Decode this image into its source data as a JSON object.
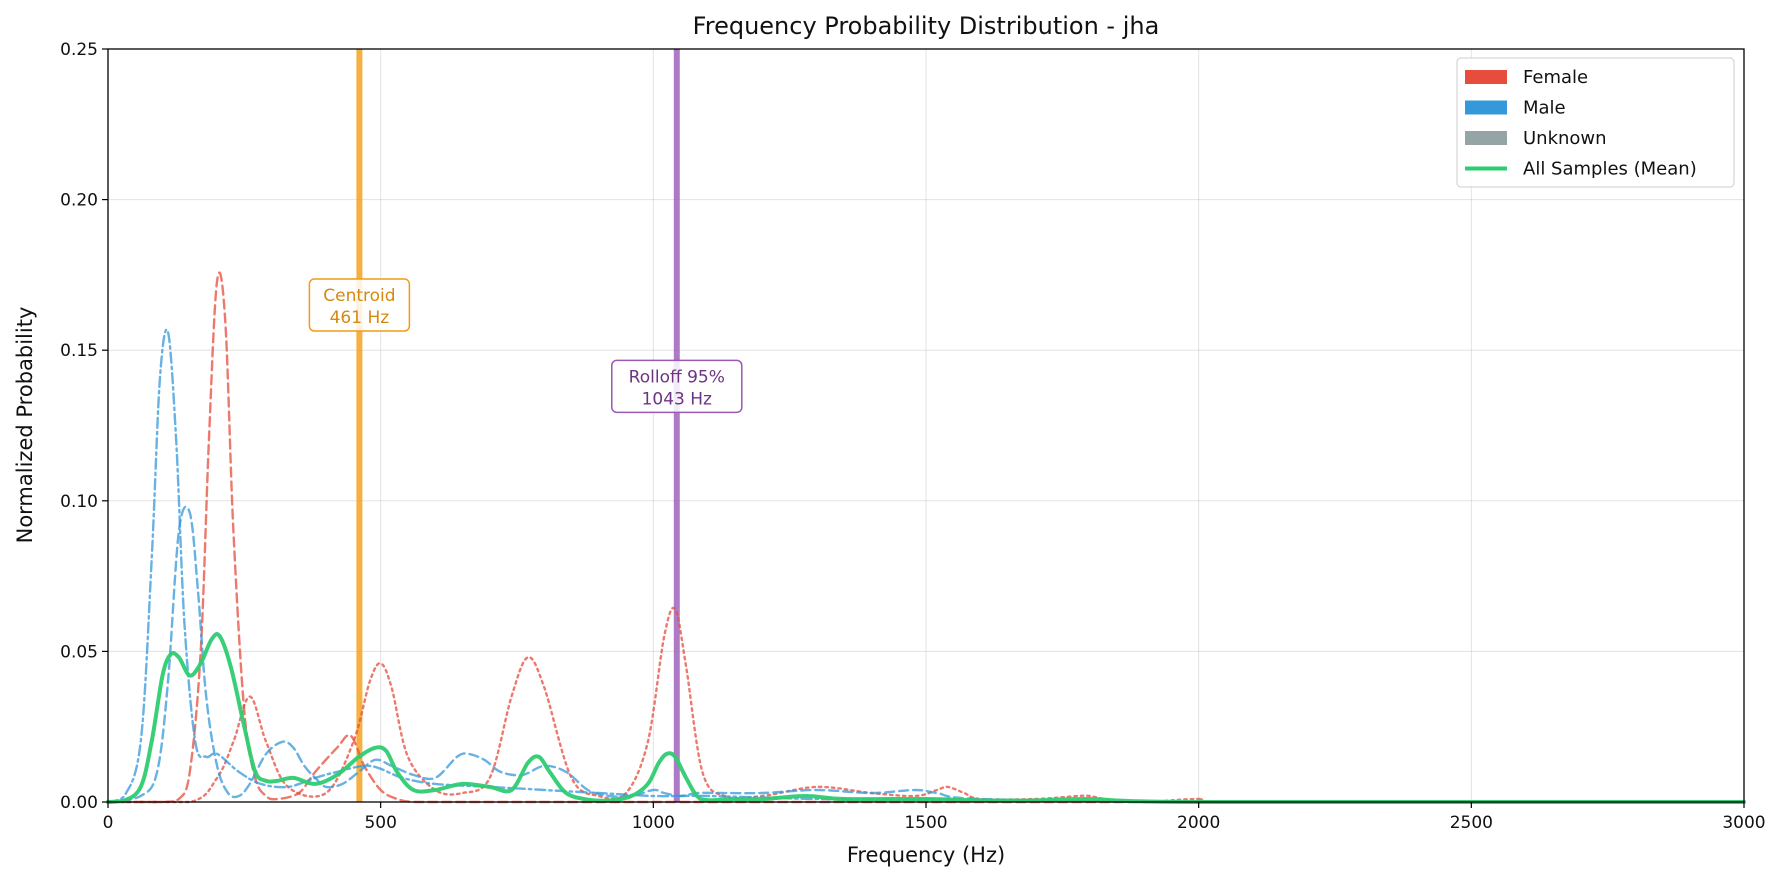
{
  "chart_data": {
    "type": "line",
    "title": "Frequency Probability Distribution - jha",
    "xlabel": "Frequency (Hz)",
    "ylabel": "Normalized Probability",
    "xlim": [
      0,
      3000
    ],
    "ylim": [
      0,
      0.25
    ],
    "xticks": [
      0,
      500,
      1000,
      1500,
      2000,
      2500,
      3000
    ],
    "yticks": [
      0.0,
      0.05,
      0.1,
      0.15,
      0.2,
      0.25
    ],
    "xtick_labels": [
      "0",
      "500",
      "1000",
      "1500",
      "2000",
      "2500",
      "3000"
    ],
    "ytick_labels": [
      "0.00",
      "0.05",
      "0.10",
      "0.15",
      "0.20",
      "0.25"
    ],
    "grid": true,
    "legend_position": "top-right",
    "legend": [
      {
        "label": "Female",
        "kind": "patch",
        "color": "#e74c3c"
      },
      {
        "label": "Male",
        "kind": "patch",
        "color": "#3498db"
      },
      {
        "label": "Unknown",
        "kind": "patch",
        "color": "#95a5a6"
      },
      {
        "label": "All Samples (Mean)",
        "kind": "line",
        "color": "#2ecc71"
      }
    ],
    "vlines": [
      {
        "label": "Centroid",
        "value_label": "461 Hz",
        "x": 461,
        "color": "#f39c12",
        "text_color": "#d68910",
        "label_y": 0.165
      },
      {
        "label": "Rolloff 95%",
        "value_label": "1043 Hz",
        "x": 1043,
        "color": "#9b59b6",
        "text_color": "#6c3483",
        "label_y": 0.138
      }
    ],
    "series": [
      {
        "group": "Female",
        "dash": "dashed",
        "color": "#e74c3c",
        "x": [
          0,
          100,
          130,
          150,
          170,
          185,
          200,
          215,
          230,
          250,
          270,
          290,
          310,
          350,
          380,
          420,
          445,
          470,
          500,
          530,
          560,
          600,
          700,
          800,
          900,
          1000,
          1500,
          2000,
          3000
        ],
        "y": [
          0,
          0,
          0.001,
          0.01,
          0.05,
          0.12,
          0.173,
          0.16,
          0.09,
          0.03,
          0.008,
          0.002,
          0.001,
          0.003,
          0.01,
          0.018,
          0.022,
          0.012,
          0.004,
          0.001,
          0,
          0,
          0,
          0,
          0,
          0,
          0,
          0,
          0
        ]
      },
      {
        "group": "Female",
        "dash": "dotted",
        "color": "#e74c3c",
        "x": [
          0,
          150,
          200,
          230,
          260,
          290,
          330,
          400,
          450,
          480,
          500,
          520,
          550,
          600,
          650,
          700,
          740,
          770,
          800,
          850,
          900,
          950,
          990,
          1020,
          1040,
          1060,
          1090,
          1130,
          1200,
          1300,
          1400,
          1480,
          1520,
          1540,
          1570,
          1600,
          1700,
          1780,
          1800,
          1830,
          1900,
          2000,
          2100,
          3000
        ],
        "y": [
          0,
          0,
          0.008,
          0.02,
          0.035,
          0.02,
          0.005,
          0.003,
          0.02,
          0.04,
          0.046,
          0.038,
          0.015,
          0.004,
          0.003,
          0.008,
          0.035,
          0.048,
          0.038,
          0.008,
          0.002,
          0.003,
          0.02,
          0.055,
          0.064,
          0.045,
          0.01,
          0.002,
          0.002,
          0.005,
          0.003,
          0.002,
          0.004,
          0.005,
          0.003,
          0.001,
          0.001,
          0.002,
          0.002,
          0.001,
          0,
          0.001,
          0,
          0
        ]
      },
      {
        "group": "Male",
        "dash": "dashdot",
        "color": "#3498db",
        "x": [
          0,
          30,
          60,
          80,
          95,
          110,
          125,
          140,
          160,
          180,
          200,
          240,
          280,
          330,
          380,
          420,
          480,
          540,
          600,
          700,
          800,
          900,
          1000,
          1100,
          1300,
          1500,
          2000,
          3000
        ],
        "y": [
          0,
          0.002,
          0.02,
          0.08,
          0.14,
          0.156,
          0.12,
          0.06,
          0.02,
          0.015,
          0.016,
          0.01,
          0.006,
          0.005,
          0.008,
          0.01,
          0.012,
          0.008,
          0.006,
          0.005,
          0.004,
          0.003,
          0.002,
          0.002,
          0.001,
          0.001,
          0,
          0
        ]
      },
      {
        "group": "Male",
        "dash": "dashed",
        "color": "#3498db",
        "x": [
          0,
          60,
          90,
          110,
          130,
          150,
          165,
          180,
          200,
          220,
          240,
          260,
          290,
          320,
          340,
          360,
          380,
          400,
          430,
          460,
          490,
          520,
          560,
          600,
          640,
          660,
          690,
          720,
          760,
          800,
          840,
          880,
          920,
          960,
          1000,
          1020,
          1050,
          1080,
          1120,
          1200,
          1300,
          1400,
          1480,
          1520,
          1600,
          2000,
          3000
        ],
        "y": [
          0,
          0.002,
          0.01,
          0.04,
          0.09,
          0.096,
          0.07,
          0.035,
          0.012,
          0.003,
          0.002,
          0.006,
          0.016,
          0.02,
          0.018,
          0.012,
          0.008,
          0.005,
          0.006,
          0.01,
          0.014,
          0.012,
          0.009,
          0.008,
          0.015,
          0.016,
          0.014,
          0.01,
          0.009,
          0.012,
          0.01,
          0.004,
          0.002,
          0.002,
          0.004,
          0.003,
          0.002,
          0.003,
          0.003,
          0.003,
          0.004,
          0.003,
          0.004,
          0.003,
          0.001,
          0,
          0
        ]
      },
      {
        "group": "Mean",
        "dash": "solid",
        "color": "#2ecc71",
        "x": [
          0,
          30,
          60,
          80,
          100,
          115,
          130,
          150,
          170,
          190,
          205,
          225,
          250,
          270,
          290,
          310,
          340,
          380,
          420,
          460,
          490,
          510,
          530,
          560,
          600,
          650,
          700,
          740,
          770,
          790,
          810,
          840,
          880,
          920,
          960,
          990,
          1010,
          1025,
          1040,
          1060,
          1080,
          1100,
          1150,
          1200,
          1280,
          1350,
          1500,
          1600,
          1700,
          1800,
          2000,
          3000
        ],
        "y": [
          0,
          0.0005,
          0.005,
          0.02,
          0.042,
          0.049,
          0.048,
          0.042,
          0.046,
          0.054,
          0.055,
          0.045,
          0.025,
          0.01,
          0.007,
          0.007,
          0.008,
          0.006,
          0.009,
          0.015,
          0.018,
          0.017,
          0.01,
          0.004,
          0.004,
          0.006,
          0.005,
          0.004,
          0.013,
          0.015,
          0.01,
          0.003,
          0.0008,
          0.0005,
          0.002,
          0.006,
          0.013,
          0.016,
          0.015,
          0.008,
          0.002,
          0.0006,
          0.001,
          0.001,
          0.002,
          0.001,
          0.001,
          0.0005,
          0.0005,
          0.001,
          0,
          0
        ]
      }
    ]
  }
}
